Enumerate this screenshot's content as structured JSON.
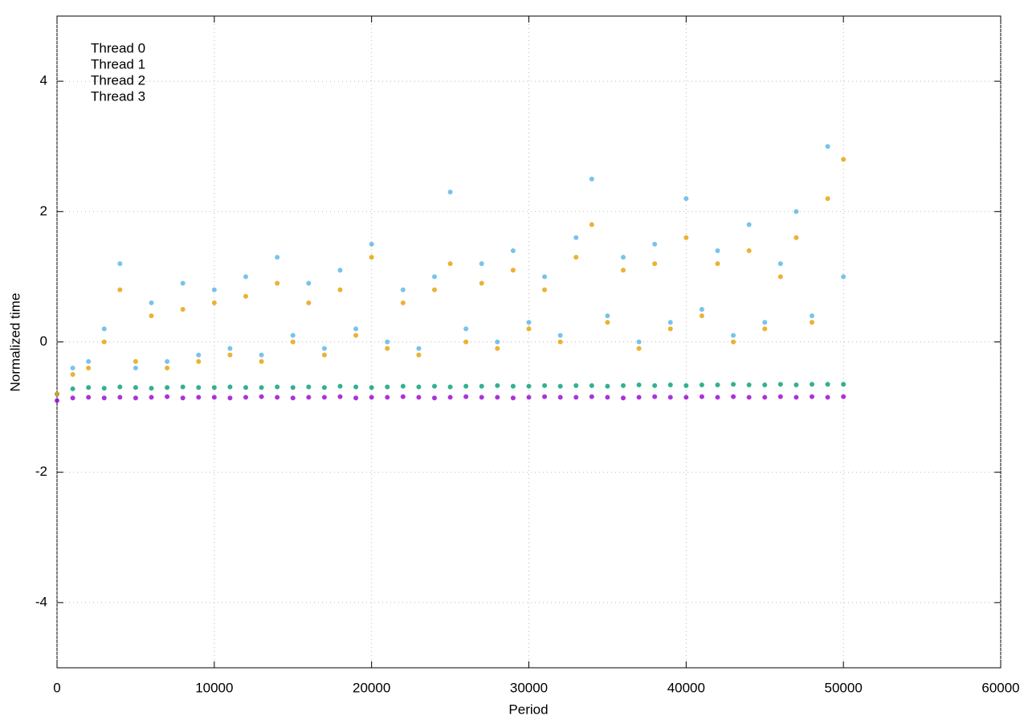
{
  "chart_data": {
    "type": "scatter",
    "xlabel": "Period",
    "ylabel": "Normalized time",
    "xlim": [
      0,
      60000
    ],
    "xticks": [
      0,
      10000,
      20000,
      30000,
      40000,
      50000,
      60000
    ],
    "ylim": [
      -5,
      5
    ],
    "yticks": [
      -4,
      -2,
      0,
      2,
      4
    ],
    "grid": true,
    "legend": "upper-left",
    "x": [
      0,
      1000,
      2000,
      3000,
      4000,
      5000,
      6000,
      7000,
      8000,
      9000,
      10000,
      11000,
      12000,
      13000,
      14000,
      15000,
      16000,
      17000,
      18000,
      19000,
      20000,
      21000,
      22000,
      23000,
      24000,
      25000,
      26000,
      27000,
      28000,
      29000,
      30000,
      31000,
      32000,
      33000,
      34000,
      35000,
      36000,
      37000,
      38000,
      39000,
      40000,
      41000,
      42000,
      43000,
      44000,
      45000,
      46000,
      47000,
      48000,
      49000,
      50000
    ],
    "series": [
      {
        "name": "Thread 0",
        "color": "#9400d3",
        "values": [
          -0.9,
          -0.86,
          -0.85,
          -0.86,
          -0.85,
          -0.86,
          -0.85,
          -0.84,
          -0.86,
          -0.85,
          -0.85,
          -0.86,
          -0.85,
          -0.84,
          -0.85,
          -0.86,
          -0.85,
          -0.85,
          -0.84,
          -0.86,
          -0.85,
          -0.85,
          -0.84,
          -0.85,
          -0.86,
          -0.85,
          -0.84,
          -0.85,
          -0.85,
          -0.86,
          -0.85,
          -0.84,
          -0.85,
          -0.85,
          -0.84,
          -0.85,
          -0.86,
          -0.85,
          -0.84,
          -0.85,
          -0.85,
          -0.84,
          -0.85,
          -0.84,
          -0.85,
          -0.85,
          -0.84,
          -0.85,
          -0.84,
          -0.85,
          -0.84
        ]
      },
      {
        "name": "Thread 1",
        "color": "#009e73",
        "values": [
          -0.8,
          -0.72,
          -0.7,
          -0.71,
          -0.69,
          -0.7,
          -0.71,
          -0.7,
          -0.69,
          -0.7,
          -0.7,
          -0.69,
          -0.7,
          -0.7,
          -0.69,
          -0.7,
          -0.69,
          -0.7,
          -0.68,
          -0.69,
          -0.7,
          -0.69,
          -0.68,
          -0.69,
          -0.68,
          -0.69,
          -0.68,
          -0.68,
          -0.67,
          -0.68,
          -0.68,
          -0.67,
          -0.68,
          -0.67,
          -0.67,
          -0.68,
          -0.67,
          -0.66,
          -0.67,
          -0.66,
          -0.67,
          -0.66,
          -0.66,
          -0.65,
          -0.66,
          -0.66,
          -0.65,
          -0.66,
          -0.65,
          -0.65,
          -0.65
        ]
      },
      {
        "name": "Thread 2",
        "color": "#56b4e9",
        "values": [
          -0.8,
          -0.4,
          -0.3,
          0.2,
          1.2,
          -0.4,
          0.6,
          -0.3,
          0.9,
          -0.2,
          0.8,
          -0.1,
          1.0,
          -0.2,
          1.3,
          0.1,
          0.9,
          -0.1,
          1.1,
          0.2,
          1.5,
          0.0,
          0.8,
          -0.1,
          1.0,
          2.3,
          0.2,
          1.2,
          0.0,
          1.4,
          0.3,
          1.0,
          0.1,
          1.6,
          2.5,
          0.4,
          1.3,
          0.0,
          1.5,
          0.3,
          2.2,
          0.5,
          1.4,
          0.1,
          1.8,
          0.3,
          1.2,
          2.0,
          0.4,
          3.0,
          1.0
        ]
      },
      {
        "name": "Thread 3",
        "color": "#e69f00",
        "values": [
          -0.8,
          -0.5,
          -0.4,
          0.0,
          0.8,
          -0.3,
          0.4,
          -0.4,
          0.5,
          -0.3,
          0.6,
          -0.2,
          0.7,
          -0.3,
          0.9,
          0.0,
          0.6,
          -0.2,
          0.8,
          0.1,
          1.3,
          -0.1,
          0.6,
          -0.2,
          0.8,
          1.2,
          0.0,
          0.9,
          -0.1,
          1.1,
          0.2,
          0.8,
          0.0,
          1.3,
          1.8,
          0.3,
          1.1,
          -0.1,
          1.2,
          0.2,
          1.6,
          0.4,
          1.2,
          0.0,
          1.4,
          0.2,
          1.0,
          1.6,
          0.3,
          2.2,
          2.8
        ]
      }
    ]
  }
}
